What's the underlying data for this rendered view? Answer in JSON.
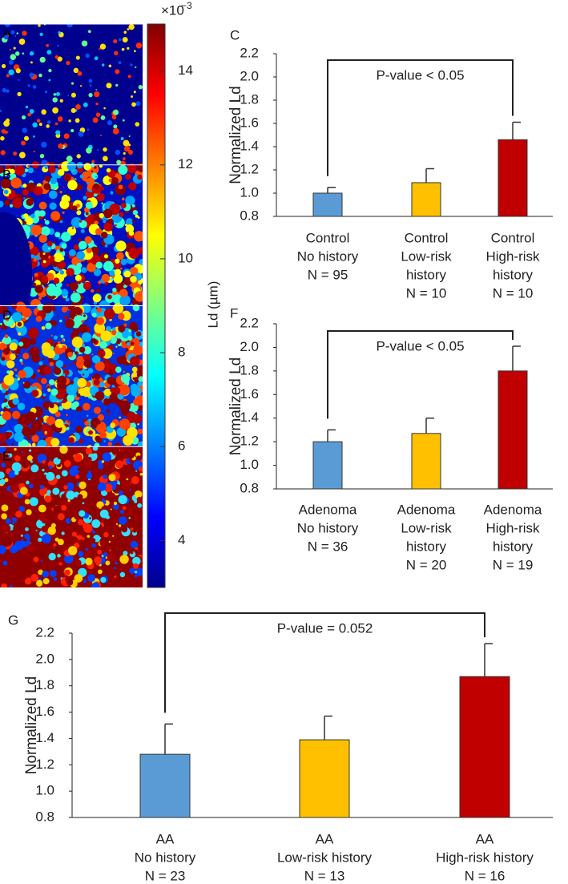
{
  "figure": {
    "panel_labels": [
      "A",
      "B",
      "D",
      "E"
    ],
    "colorbar": {
      "label": "Ld (µm)",
      "multiplier": "×10",
      "exponent": "−3",
      "lim": [
        3,
        15
      ],
      "ticks": [
        4,
        6,
        8,
        10,
        12,
        14
      ]
    }
  },
  "chart_data": [
    {
      "type": "bar",
      "panel": "C",
      "ylabel": "Normalized Ld",
      "categories": [
        [
          "Control",
          "No history",
          "N = 95"
        ],
        [
          "Control",
          "Low-risk",
          "history",
          "N = 10"
        ],
        [
          "Control",
          "High-risk",
          "history",
          "N = 10"
        ]
      ],
      "values": [
        1.0,
        1.09,
        1.46
      ],
      "errors": [
        0.05,
        0.12,
        0.15
      ],
      "colors": [
        "#5b9bd5",
        "#ffc000",
        "#c00000"
      ],
      "ylim": [
        0.8,
        2.2
      ],
      "yticks": [
        0.8,
        {
          "value": 1.0,
          "label": "1.0"
        },
        1.2,
        1.4,
        1.6,
        1.8,
        {
          "value": 2.0,
          "label": "2.0"
        },
        2.2
      ],
      "annotation": "P-value < 0.05"
    },
    {
      "type": "bar",
      "panel": "F",
      "ylabel": "Normalized Ld",
      "categories": [
        [
          "Adenoma",
          "No history",
          "N = 36"
        ],
        [
          "Adenoma",
          "Low-risk",
          "history",
          "N = 20"
        ],
        [
          "Adenoma",
          "High-risk",
          "history",
          "N = 19"
        ]
      ],
      "values": [
        1.2,
        1.27,
        1.8
      ],
      "errors": [
        0.1,
        0.13,
        0.21
      ],
      "colors": [
        "#5b9bd5",
        "#ffc000",
        "#c00000"
      ],
      "ylim": [
        0.8,
        2.2
      ],
      "yticks": [
        0.8,
        {
          "value": 1.0,
          "label": "1.0"
        },
        1.2,
        1.4,
        1.6,
        1.8,
        {
          "value": 2.0,
          "label": "2.0"
        },
        2.2
      ],
      "annotation": "P-value < 0.05"
    },
    {
      "type": "bar",
      "panel": "G",
      "ylabel": "Normalized Ld",
      "categories": [
        [
          "AA",
          "No history",
          "N = 23"
        ],
        [
          "AA",
          "Low-risk history",
          "N = 13"
        ],
        [
          "AA",
          "High-risk history",
          "N = 16"
        ]
      ],
      "values": [
        1.28,
        1.39,
        1.87
      ],
      "errors": [
        0.23,
        0.18,
        0.25
      ],
      "colors": [
        "#5b9bd5",
        "#ffc000",
        "#c00000"
      ],
      "ylim": [
        0.8,
        2.2
      ],
      "yticks": [
        0.8,
        {
          "value": 1.0,
          "label": "1.0"
        },
        1.2,
        1.4,
        1.6,
        1.8,
        {
          "value": 2.0,
          "label": "2.0"
        },
        2.2
      ],
      "annotation": "P-value = 0.052"
    }
  ]
}
